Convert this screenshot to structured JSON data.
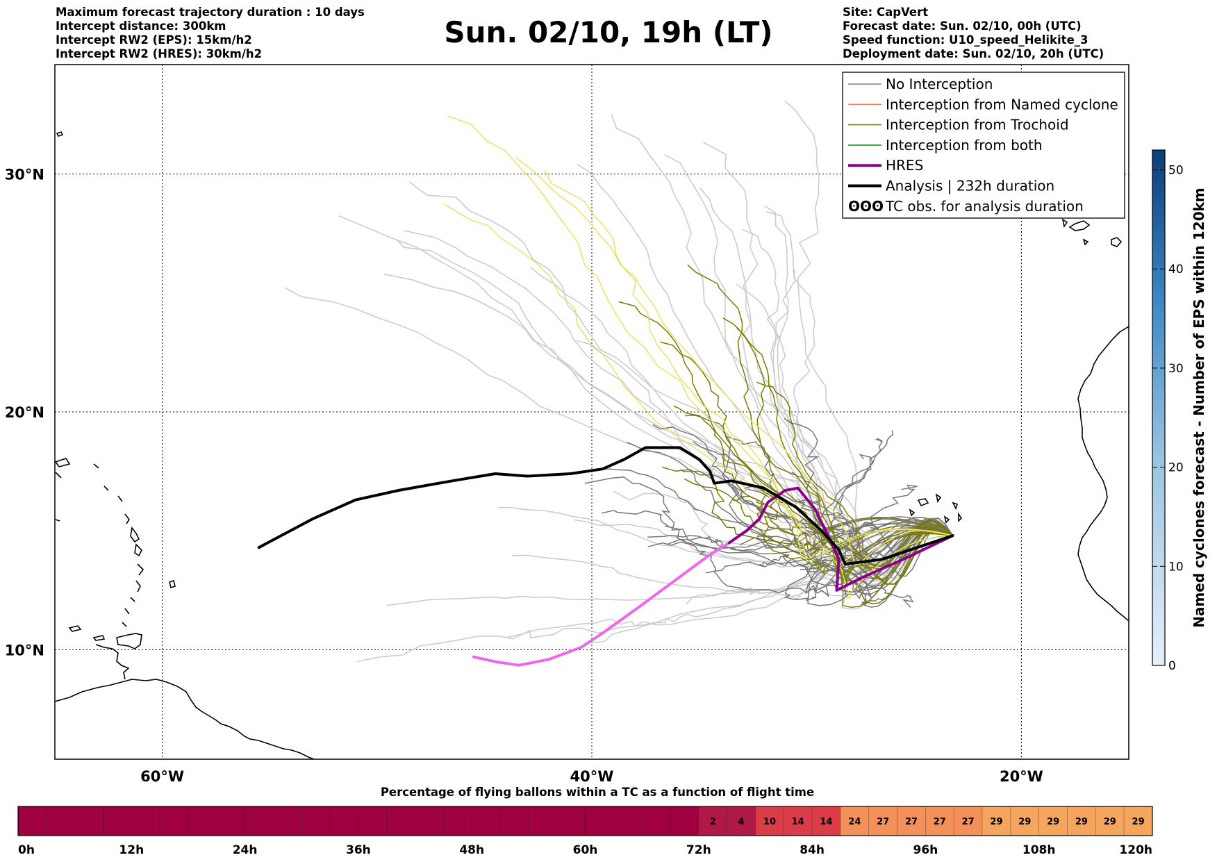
{
  "header": {
    "left": [
      "Maximum forecast trajectory duration : 10 days",
      "Intercept distance: 300km",
      "Intercept RW2 (EPS):  15km/h2",
      "Intercept RW2 (HRES): 30km/h2"
    ],
    "right": [
      "Site: CapVert",
      "Forecast date: Sun. 02/10, 00h (UTC)",
      "Speed function: U10_speed_Helikite_3",
      "Deployment date: Sun. 02/10, 20h (UTC)"
    ],
    "title": "Sun. 02/10, 19h (LT)"
  },
  "chart_data": [
    {
      "type": "line",
      "subtype": "map-trajectories",
      "xlim": [
        -65,
        -15
      ],
      "ylim": [
        5.4,
        34.6
      ],
      "x_ticks": [
        -60,
        -40,
        -20
      ],
      "x_tick_labels": [
        "60°W",
        "40°W",
        "20°W"
      ],
      "y_ticks": [
        10,
        20,
        30
      ],
      "y_tick_labels": [
        "10°N",
        "20°N",
        "30°N"
      ],
      "grid": "dotted",
      "legend_position": "top-right",
      "legend": [
        {
          "label": "No Interception",
          "color": "#808080"
        },
        {
          "label": "Interception from Named cyclone",
          "color": "#ff7f50"
        },
        {
          "label": "Interception from Trochoid",
          "color": "#808000"
        },
        {
          "label": "Interception from both",
          "color": "#228b22"
        },
        {
          "label": "HRES",
          "color": "#8b008b"
        },
        {
          "label": "Analysis | 232h duration",
          "color": "#000000"
        },
        {
          "label": "TC obs. for analysis duration",
          "symbol": "ʘʘʘ",
          "color": "#000000"
        }
      ],
      "colors": {
        "no_interception": "#777777",
        "light_member": "#cccccc",
        "trochoid": "#7a7a00",
        "late_member": "#e8e060",
        "hres_late": "#ee66ee",
        "hres": "#8b008b",
        "analysis": "#000000"
      },
      "start": [
        -23.2,
        14.8
      ],
      "series": [
        {
          "name": "Analysis | 232h duration",
          "color": "#000000",
          "points": [
            [
              -23.2,
              14.8
            ],
            [
              -26.5,
              13.8
            ],
            [
              -28.2,
              13.6
            ],
            [
              -28.5,
              14.2
            ],
            [
              -29.3,
              15.0
            ],
            [
              -30.5,
              16.0
            ],
            [
              -32,
              16.8
            ],
            [
              -33.5,
              17.1
            ],
            [
              -34.3,
              17.0
            ],
            [
              -34.5,
              17.5
            ],
            [
              -35,
              18.0
            ],
            [
              -35.9,
              18.5
            ],
            [
              -37.5,
              18.5
            ],
            [
              -38.5,
              18.0
            ],
            [
              -39.5,
              17.6
            ],
            [
              -41,
              17.4
            ],
            [
              -43,
              17.3
            ],
            [
              -44.5,
              17.4
            ],
            [
              -46.5,
              17.1
            ],
            [
              -49,
              16.7
            ],
            [
              -51,
              16.3
            ],
            [
              -53,
              15.5
            ],
            [
              -55.5,
              14.3
            ]
          ]
        },
        {
          "name": "HRES",
          "color": "#8b008b",
          "points": [
            [
              -23.2,
              14.8
            ],
            [
              -25.5,
              13.8
            ],
            [
              -27.5,
              13.0
            ],
            [
              -28.6,
              12.5
            ],
            [
              -28.5,
              13.8
            ],
            [
              -29,
              14.8
            ],
            [
              -29.6,
              15.9
            ],
            [
              -30.4,
              16.8
            ],
            [
              -31,
              16.7
            ],
            [
              -31.8,
              16.2
            ],
            [
              -32.2,
              15.5
            ],
            [
              -32.8,
              15.0
            ],
            [
              -33.6,
              14.5
            ]
          ]
        },
        {
          "name": "",
          "color": "#ee66ee",
          "points": [
            [
              -33.6,
              14.5
            ],
            [
              -34.5,
              14.0
            ],
            [
              -36,
              13.0
            ],
            [
              -37.8,
              11.8
            ],
            [
              -39.5,
              10.7
            ],
            [
              -40.5,
              10.1
            ],
            [
              -42,
              9.6
            ],
            [
              -43.4,
              9.35
            ],
            [
              -44.5,
              9.5
            ],
            [
              -45.5,
              9.7
            ]
          ]
        }
      ],
      "colorbar": {
        "label": "Named cyclones forecast - Number of EPS within 120km",
        "ticks": [
          0,
          10,
          20,
          30,
          40,
          50
        ],
        "range": [
          0,
          52
        ],
        "colors": [
          "#deebf7",
          "#08306b"
        ]
      },
      "ensemble_summary": "Ensemble member trajectories from the CapVert site, drawn in grey (no interception), olive (trochoid) and light grey / yellow (late flight)"
    },
    {
      "type": "bar",
      "subtype": "time-strip",
      "title": "Percentage of flying ballons within a TC as a function of flight time",
      "x_tick_labels": [
        "0h",
        "12h",
        "24h",
        "36h",
        "48h",
        "60h",
        "72h",
        "84h",
        "96h",
        "108h",
        "120h"
      ],
      "x_ticks": [
        0,
        12,
        24,
        36,
        48,
        60,
        72,
        84,
        96,
        108,
        120
      ],
      "xlim": [
        0,
        120
      ],
      "bin_hours": 3,
      "values": [
        0,
        0,
        0,
        0,
        0,
        0,
        0,
        0,
        0,
        0,
        0,
        0,
        0,
        0,
        0,
        0,
        0,
        0,
        0,
        0,
        0,
        0,
        0,
        0,
        2,
        4,
        10,
        14,
        14,
        24,
        27,
        27,
        27,
        27,
        29,
        29,
        29,
        29,
        29,
        29
      ],
      "colors": {
        "zero": "#a00040",
        "low": "#b01848",
        "mid": "#dc3c48",
        "high": "#f4905a",
        "top": "#f6a55e"
      }
    }
  ]
}
